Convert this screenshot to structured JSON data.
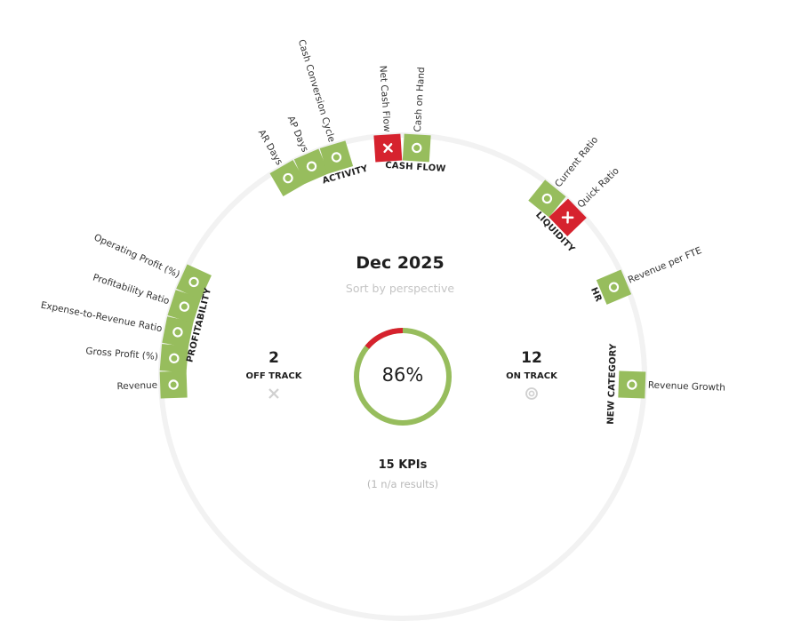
{
  "header": {
    "period": "Dec 2025",
    "sort_label": "Sort by perspective"
  },
  "summary": {
    "off_track_count": "2",
    "off_track_label": "OFF TRACK",
    "on_track_count": "12",
    "on_track_label": "ON TRACK",
    "percent": "86%",
    "percent_value": 0.86,
    "total_label": "15 KPIs",
    "na_label": "(1 n/a results)"
  },
  "colors": {
    "on_track": "#97bd5d",
    "off_track": "#d6222e",
    "ring_track": "#f2f2f2",
    "muted_text": "#c5c5c5"
  },
  "status_icons": {
    "on_track": "circle-icon",
    "off_track": "x-icon"
  },
  "groups": [
    {
      "name": "PROFITABILITY",
      "kpis": [
        {
          "label": "Revenue",
          "status": "on_track"
        },
        {
          "label": "Gross Profit (%)",
          "status": "on_track"
        },
        {
          "label": "Expense-to-Revenue Ratio",
          "status": "on_track"
        },
        {
          "label": "Profitability Ratio",
          "status": "on_track"
        },
        {
          "label": "Operating Profit (%)",
          "status": "on_track"
        }
      ]
    },
    {
      "name": "ACTIVITY",
      "kpis": [
        {
          "label": "AR Days",
          "status": "on_track"
        },
        {
          "label": "AP Days",
          "status": "on_track"
        },
        {
          "label": "Cash Conversion Cycle",
          "status": "on_track"
        }
      ]
    },
    {
      "name": "CASH FLOW",
      "kpis": [
        {
          "label": "Net Cash Flow",
          "status": "off_track"
        },
        {
          "label": "Cash on Hand",
          "status": "on_track"
        }
      ]
    },
    {
      "name": "LIQUIDITY",
      "kpis": [
        {
          "label": "Current Ratio",
          "status": "on_track"
        },
        {
          "label": "Quick Ratio",
          "status": "off_track"
        }
      ]
    },
    {
      "name": "HR",
      "kpis": [
        {
          "label": "Revenue per FTE",
          "status": "on_track"
        }
      ]
    },
    {
      "name": "NEW CATEGORY",
      "kpis": [
        {
          "label": "Revenue Growth",
          "status": "on_track"
        }
      ]
    }
  ]
}
